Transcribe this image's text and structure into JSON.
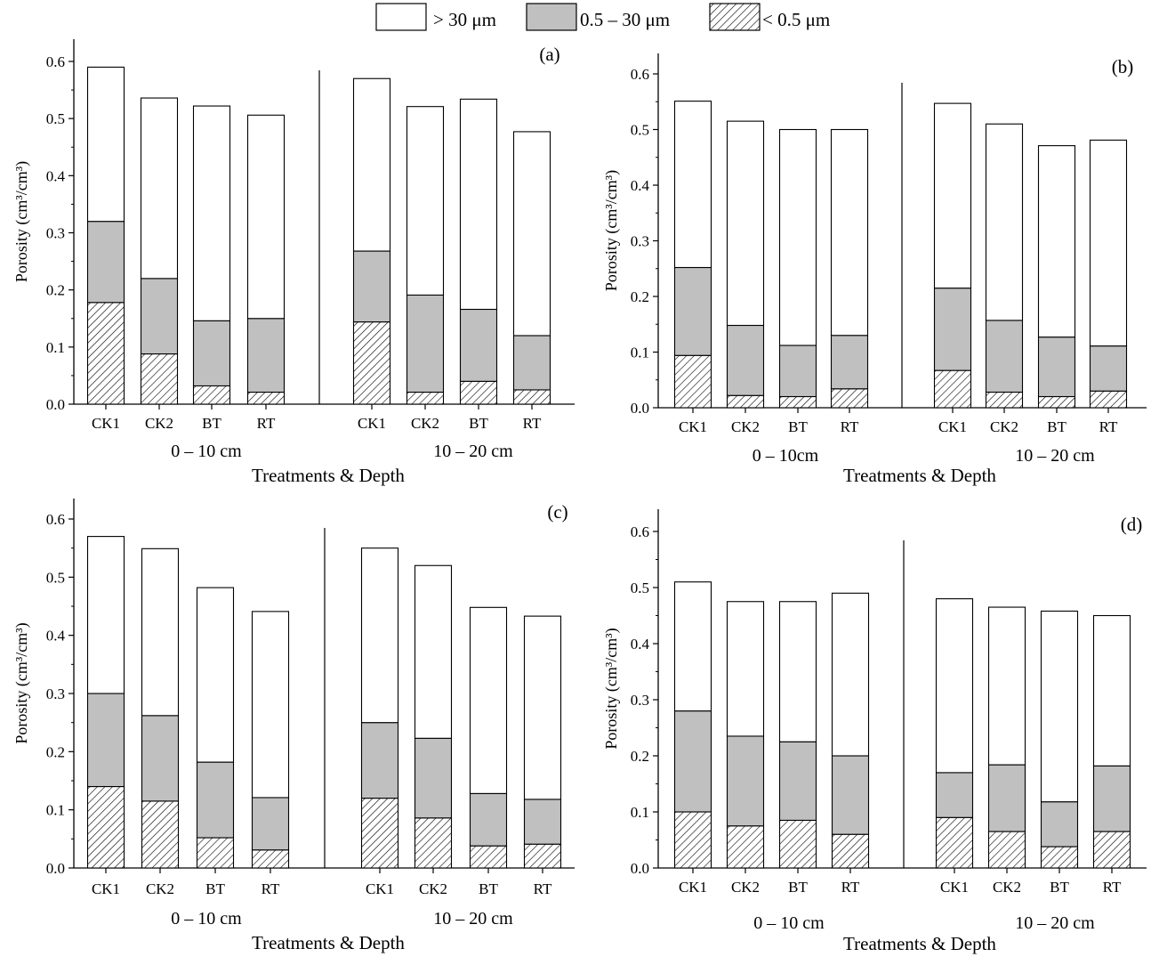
{
  "legend": [
    {
      "label": "> 30 μm",
      "fill": "#ffffff",
      "pattern": "none"
    },
    {
      "label": "0.5 – 30 μm",
      "fill": "#c0c0c0",
      "pattern": "none"
    },
    {
      "label": "< 0.5 μm",
      "fill": "#ffffff",
      "pattern": "hatch"
    }
  ],
  "colors": {
    "large": "#ffffff",
    "medium": "#c0c0c0",
    "small_hatch": "#ffffff",
    "stroke": "#000000"
  },
  "chart_data": [
    {
      "type": "bar",
      "stacked": true,
      "panel": "(a)",
      "ylabel": "Porosity (cm³/cm³)",
      "xlabel": "Treatments & Depth",
      "ylim": [
        0,
        0.6
      ],
      "yticks": [
        "0.0",
        "0.1",
        "0.2",
        "0.3",
        "0.4",
        "0.5",
        "0.6"
      ],
      "groups": [
        "0 – 10 cm",
        "10 – 20 cm"
      ],
      "categories": [
        "CK1",
        "CK2",
        "BT",
        "RT",
        "CK1",
        "CK2",
        "BT",
        "RT"
      ],
      "series": [
        {
          "name": "< 0.5 μm",
          "values": [
            0.178,
            0.088,
            0.032,
            0.021,
            0.144,
            0.021,
            0.04,
            0.025
          ]
        },
        {
          "name": "0.5 – 30 μm",
          "values": [
            0.142,
            0.132,
            0.114,
            0.129,
            0.124,
            0.17,
            0.126,
            0.095
          ]
        },
        {
          "name": "> 30 μm",
          "values": [
            0.27,
            0.316,
            0.376,
            0.356,
            0.302,
            0.33,
            0.368,
            0.357
          ]
        }
      ]
    },
    {
      "type": "bar",
      "stacked": true,
      "panel": "(b)",
      "ylabel": "Porosity (cm³/cm³)",
      "xlabel": "Treatments & Depth",
      "ylim": [
        0,
        0.6
      ],
      "yticks": [
        "0.0",
        "0.1",
        "0.2",
        "0.3",
        "0.4",
        "0.5",
        "0.6"
      ],
      "groups": [
        "0 – 10cm",
        "10 – 20 cm"
      ],
      "categories": [
        "CK1",
        "CK2",
        "BT",
        "RT",
        "CK1",
        "CK2",
        "BT",
        "RT"
      ],
      "series": [
        {
          "name": "< 0.5 μm",
          "values": [
            0.094,
            0.022,
            0.02,
            0.034,
            0.067,
            0.028,
            0.02,
            0.03
          ]
        },
        {
          "name": "0.5 – 30 μm",
          "values": [
            0.158,
            0.126,
            0.092,
            0.096,
            0.148,
            0.129,
            0.107,
            0.081
          ]
        },
        {
          "name": "> 30 μm",
          "values": [
            0.299,
            0.367,
            0.388,
            0.37,
            0.332,
            0.353,
            0.344,
            0.37
          ]
        }
      ]
    },
    {
      "type": "bar",
      "stacked": true,
      "panel": "(c)",
      "ylabel": "Porosity (cm³/cm³)",
      "xlabel": "Treatments & Depth",
      "ylim": [
        0,
        0.6
      ],
      "yticks": [
        "0.0",
        "0.1",
        "0.2",
        "0.3",
        "0.4",
        "0.5",
        "0.6"
      ],
      "groups": [
        "0 – 10 cm",
        "10 – 20 cm"
      ],
      "categories": [
        "CK1",
        "CK2",
        "BT",
        "RT",
        "CK1",
        "CK2",
        "BT",
        "RT"
      ],
      "series": [
        {
          "name": "< 0.5 μm",
          "values": [
            0.14,
            0.115,
            0.052,
            0.031,
            0.12,
            0.086,
            0.038,
            0.041
          ]
        },
        {
          "name": "0.5 – 30 μm",
          "values": [
            0.16,
            0.147,
            0.13,
            0.09,
            0.13,
            0.137,
            0.09,
            0.077
          ]
        },
        {
          "name": "> 30 μm",
          "values": [
            0.27,
            0.287,
            0.3,
            0.32,
            0.3,
            0.297,
            0.32,
            0.315
          ]
        }
      ]
    },
    {
      "type": "bar",
      "stacked": true,
      "panel": "(d)",
      "ylabel": "Porosity (cm³/cm³)",
      "xlabel": "Treatments & Depth",
      "ylim": [
        0,
        0.6
      ],
      "yticks": [
        "0.0",
        "0.1",
        "0.2",
        "0.3",
        "0.4",
        "0.5",
        "0.6"
      ],
      "groups": [
        "0 – 10 cm",
        "10 – 20 cm"
      ],
      "categories": [
        "CK1",
        "CK2",
        "BT",
        "RT",
        "CK1",
        "CK2",
        "BT",
        "RT"
      ],
      "series": [
        {
          "name": "< 0.5 μm",
          "values": [
            0.1,
            0.075,
            0.085,
            0.06,
            0.09,
            0.065,
            0.038,
            0.065
          ]
        },
        {
          "name": "0.5 – 30 μm",
          "values": [
            0.18,
            0.16,
            0.14,
            0.14,
            0.08,
            0.119,
            0.08,
            0.117
          ]
        },
        {
          "name": "> 30 μm",
          "values": [
            0.23,
            0.24,
            0.25,
            0.29,
            0.31,
            0.281,
            0.34,
            0.268
          ]
        }
      ]
    }
  ]
}
